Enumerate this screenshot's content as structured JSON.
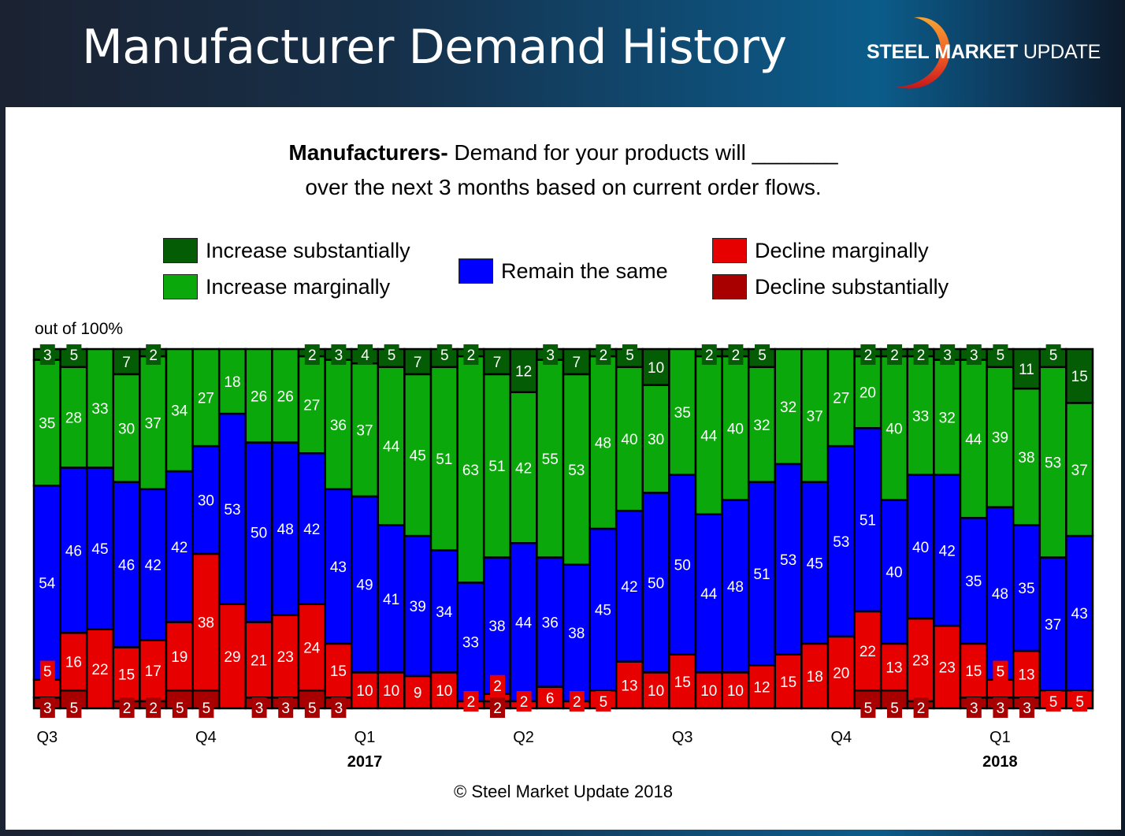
{
  "header": {
    "title": "Manufacturer Demand History",
    "logo": {
      "word1": "STEEL",
      "word2": "MARKET",
      "word3": "UPDATE"
    }
  },
  "question": {
    "bold": "Manufacturers-",
    "line1": " Demand for your products will _______",
    "line2": "over the next 3 months based on current order flows."
  },
  "unit_label": "out of 100%",
  "copyright": "© Steel Market Update 2018",
  "colors": {
    "increase_substantially": "#045c04",
    "increase_marginally": "#0ba80b",
    "remain_same": "#0000ff",
    "decline_marginally": "#e60000",
    "decline_substantially": "#a80000"
  },
  "chart_data": {
    "type": "bar",
    "stacked": true,
    "title": "Manufacturers- Demand for your products will _______ over the next 3 months based on current order flows.",
    "ylabel": "out of 100%",
    "ylim": [
      0,
      100
    ],
    "grid": false,
    "legend_position": "top",
    "x_ticks": [
      {
        "bar_index": 0,
        "label": "Q3"
      },
      {
        "bar_index": 6,
        "label": "Q4"
      },
      {
        "bar_index": 12,
        "label": "Q1",
        "year": "2017"
      },
      {
        "bar_index": 18,
        "label": "Q2"
      },
      {
        "bar_index": 24,
        "label": "Q3"
      },
      {
        "bar_index": 30,
        "label": "Q4"
      },
      {
        "bar_index": 36,
        "label": "Q1",
        "year": "2018"
      }
    ],
    "series_order_bottom_to_top": [
      "Decline substantially",
      "Decline marginally",
      "Remain the same",
      "Increase marginally",
      "Increase substantially"
    ],
    "series": [
      {
        "name": "Decline substantially",
        "key": "decline_substantially",
        "values": [
          3,
          5,
          0,
          2,
          2,
          5,
          5,
          0,
          3,
          3,
          5,
          3,
          0,
          0,
          0,
          0,
          0,
          2,
          0,
          0,
          0,
          0,
          0,
          0,
          0,
          0,
          0,
          0,
          0,
          0,
          0,
          5,
          5,
          2,
          0,
          3,
          3,
          3,
          0,
          0
        ]
      },
      {
        "name": "Decline marginally",
        "key": "decline_marginally",
        "values": [
          5,
          16,
          22,
          15,
          17,
          19,
          38,
          29,
          21,
          23,
          24,
          15,
          10,
          10,
          9,
          10,
          2,
          2,
          2,
          6,
          2,
          5,
          13,
          10,
          15,
          10,
          10,
          12,
          15,
          18,
          20,
          22,
          13,
          23,
          23,
          15,
          5,
          13,
          5,
          5
        ]
      },
      {
        "name": "Remain the same",
        "key": "remain_same",
        "values": [
          54,
          46,
          45,
          46,
          42,
          42,
          30,
          53,
          50,
          48,
          42,
          43,
          49,
          41,
          39,
          34,
          33,
          38,
          44,
          36,
          38,
          45,
          42,
          50,
          50,
          44,
          48,
          51,
          53,
          45,
          53,
          51,
          40,
          40,
          42,
          35,
          48,
          35,
          37,
          43
        ]
      },
      {
        "name": "Increase marginally",
        "key": "increase_marginally",
        "values": [
          35,
          28,
          33,
          30,
          37,
          34,
          27,
          18,
          26,
          26,
          27,
          36,
          37,
          44,
          45,
          51,
          63,
          51,
          42,
          55,
          53,
          48,
          40,
          30,
          35,
          44,
          40,
          32,
          32,
          37,
          27,
          20,
          40,
          33,
          32,
          44,
          39,
          38,
          53,
          37
        ]
      },
      {
        "name": "Increase substantially",
        "key": "increase_substantially",
        "values": [
          3,
          5,
          0,
          7,
          2,
          0,
          0,
          0,
          0,
          0,
          2,
          3,
          4,
          5,
          7,
          5,
          2,
          7,
          12,
          3,
          7,
          2,
          5,
          10,
          0,
          2,
          2,
          5,
          0,
          0,
          0,
          2,
          2,
          2,
          3,
          3,
          5,
          11,
          5,
          15
        ]
      }
    ],
    "legend": [
      {
        "label": "Increase substantially",
        "key": "increase_substantially"
      },
      {
        "label": "Increase marginally",
        "key": "increase_marginally"
      },
      {
        "label": "Remain the same",
        "key": "remain_same"
      },
      {
        "label": "Decline marginally",
        "key": "decline_marginally"
      },
      {
        "label": "Decline substantially",
        "key": "decline_substantially"
      }
    ]
  }
}
